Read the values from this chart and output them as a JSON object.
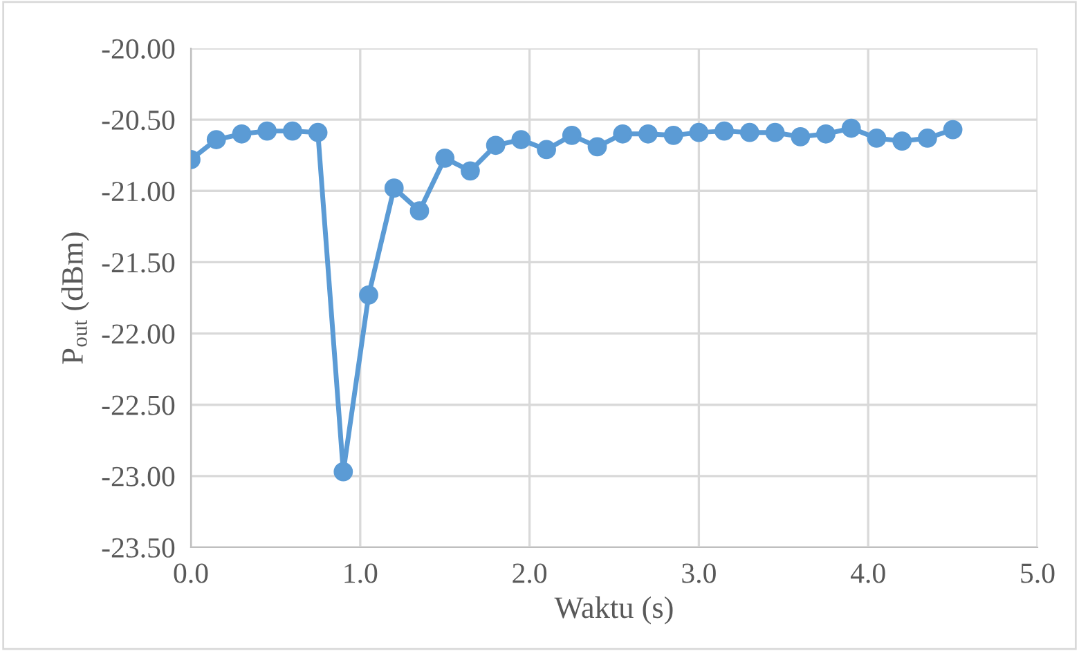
{
  "chart_data": {
    "type": "line",
    "xlabel": "Waktu (s)",
    "ylabel": "P$_{out}$ (dBm)",
    "x": [
      0,
      0.15,
      0.3,
      0.45,
      0.6,
      0.75,
      0.9,
      1.05,
      1.2,
      1.35,
      1.5,
      1.65,
      1.8,
      1.95,
      2.1,
      2.25,
      2.4,
      2.55,
      2.7,
      2.85,
      3.0,
      3.15,
      3.3,
      3.45,
      3.6,
      3.75,
      3.9,
      4.05,
      4.2,
      4.35,
      4.5
    ],
    "series": [
      {
        "color": "#5b9bd5",
        "values": [
          -20.78,
          -20.64,
          -20.6,
          -20.58,
          -20.58,
          -20.59,
          -22.97,
          -21.73,
          -20.98,
          -21.14,
          -20.77,
          -20.86,
          -20.68,
          -20.64,
          -20.71,
          -20.61,
          -20.69,
          -20.6,
          -20.6,
          -20.61,
          -20.59,
          -20.58,
          -20.59,
          -20.59,
          -20.62,
          -20.6,
          -20.56,
          -20.63,
          -20.65,
          -20.63,
          -20.57
        ]
      }
    ],
    "xlim": [
      0,
      5
    ],
    "ylim": [
      -23.5,
      -20
    ],
    "xticks": [
      {
        "value": 0,
        "label": "0.0"
      },
      {
        "value": 1,
        "label": "1.0"
      },
      {
        "value": 2,
        "label": "2.0"
      },
      {
        "value": 3,
        "label": "3.0"
      },
      {
        "value": 4,
        "label": "4.0"
      },
      {
        "value": 5,
        "label": "5.0"
      }
    ],
    "yticks": [
      {
        "value": -23.5,
        "label": "-23.50"
      },
      {
        "value": -23,
        "label": "-23.00"
      },
      {
        "value": -22.5,
        "label": "-22.50"
      },
      {
        "value": -22,
        "label": "-22.00"
      },
      {
        "value": -21.5,
        "label": "-21.50"
      },
      {
        "value": -21,
        "label": "-21.00"
      },
      {
        "value": -20.5,
        "label": "-20.50"
      },
      {
        "value": -20,
        "label": "-20.00"
      }
    ],
    "grid": true,
    "marker": "circle",
    "line_style": "solid"
  }
}
